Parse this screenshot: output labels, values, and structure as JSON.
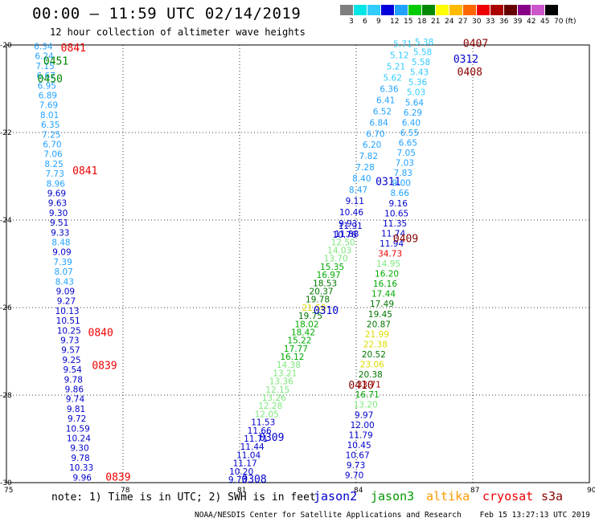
{
  "header": {
    "title": "00:00 – 11:59 UTC 02/14/2019",
    "subtitle": "12 hour collection of altimeter wave heights"
  },
  "colorbar": {
    "labels": [
      "3",
      "6",
      "9",
      "12",
      "15",
      "18",
      "21",
      "24",
      "27",
      "30",
      "33",
      "36",
      "39",
      "42",
      "45",
      "70",
      "(ft)"
    ],
    "colors": [
      "#7f7f7f",
      "#00e5e5",
      "#33ccff",
      "#0000dd",
      "#22a2ff",
      "#00cc00",
      "#008800",
      "#ffff00",
      "#ffbb00",
      "#ff6600",
      "#ee0000",
      "#aa0000",
      "#660000",
      "#880088",
      "#cc55cc",
      "#000000"
    ]
  },
  "map": {
    "lon_ticks": [
      "75",
      "78",
      "81",
      "84",
      "87",
      "90"
    ],
    "lat_ticks": [
      "-20",
      "-22",
      "-24",
      "-26",
      "-28",
      "-30"
    ]
  },
  "tracks": {
    "track_a": {
      "lat_start": -20.1,
      "lat_end": -29.95,
      "lon_start": 75.95,
      "lon_end": 76.95,
      "values": [
        "6.34",
        "6.24",
        "7.15",
        "6.67",
        "6.95",
        "6.89",
        "7.69",
        "8.01",
        "6.35",
        "7.25",
        "6.70",
        "7.06",
        "8.25",
        "7.73",
        "8.96",
        "9.69",
        "9.63",
        "9.30",
        "9.51",
        "9.33",
        "8.48",
        "9.09",
        "7.39",
        "8.07",
        "8.43",
        "9.09",
        "9.27",
        "10.13",
        "10.51",
        "10.25",
        "9.73",
        "9.57",
        "9.25",
        "9.54",
        "9.78",
        "9.86",
        "9.74",
        "9.81",
        "9.72",
        "10.59",
        "10.24",
        "9.30",
        "9.78",
        "10.33",
        "9.96"
      ],
      "colors": [
        "#22a2ff",
        "#22a2ff",
        "#22a2ff",
        "#22a2ff",
        "#22a2ff",
        "#22a2ff",
        "#22a2ff",
        "#22a2ff",
        "#22a2ff",
        "#22a2ff",
        "#22a2ff",
        "#22a2ff",
        "#22a2ff",
        "#22a2ff",
        "#22a2ff",
        "#0000cc",
        "#0000cc",
        "#0000cc",
        "#0000cc",
        "#0000cc",
        "#22a2ff",
        "#0000cc",
        "#22a2ff",
        "#22a2ff",
        "#22a2ff",
        "#0000cc",
        "#0000cc",
        "#0000cc",
        "#0000cc",
        "#0000cc",
        "#0000cc",
        "#0000cc",
        "#0000cc",
        "#0000cc",
        "#0000cc",
        "#0000cc",
        "#0000cc",
        "#0000cc",
        "#0000cc",
        "#0000cc",
        "#0000cc",
        "#0000cc",
        "#0000cc",
        "#0000cc",
        "#0000cc"
      ]
    },
    "track_b": {
      "lat_start": -24.2,
      "lat_end": -30.0,
      "lon_start": 83.85,
      "lon_end": 80.95,
      "values": [
        "11.91",
        "11.88",
        "12.50",
        "14.03",
        "13.70",
        "15.35",
        "16.97",
        "18.53",
        "20.37",
        "19.78",
        "21.58",
        "19.75",
        "18.02",
        "18.42",
        "15.22",
        "17.77",
        "16.12",
        "14.38",
        "13.21",
        "13.36",
        "12.15",
        "13.26",
        "12.28",
        "12.05",
        "11.53",
        "11.66",
        "11.71",
        "11.44",
        "11.04",
        "11.17",
        "10.20",
        "9.73"
      ],
      "colors": [
        "#0000cc",
        "#0000cc",
        "#7ee87e",
        "#7ee87e",
        "#7ee87e",
        "#00aa00",
        "#00aa00",
        "#007700",
        "#007700",
        "#007700",
        "#dddd00",
        "#007700",
        "#00aa00",
        "#00aa00",
        "#00aa00",
        "#00aa00",
        "#00aa00",
        "#7ee87e",
        "#7ee87e",
        "#7ee87e",
        "#7ee87e",
        "#7ee87e",
        "#7ee87e",
        "#7ee87e",
        "#0000cc",
        "#0000cc",
        "#0000cc",
        "#0000cc",
        "#0000cc",
        "#0000cc",
        "#0000cc",
        "#0000cc"
      ]
    },
    "track_c": {
      "lat_start": -20.0,
      "lat_end": -29.9,
      "lon_start": 85.75,
      "lon_end": 83.95,
      "values": [
        "5.38",
        "5.58",
        "5.58",
        "5.43",
        "5.36",
        "5.03",
        "5.64",
        "6.29",
        "6.40",
        "6.55",
        "6.65",
        "7.05",
        "7.03",
        "7.83",
        "9.00",
        "8.66",
        "9.16",
        "10.65",
        "11.35",
        "11.74",
        "11.94",
        "34.73",
        "14.95",
        "16.20",
        "16.16",
        "17.44",
        "17.49",
        "19.45",
        "20.87",
        "21.99",
        "22.38",
        "20.52",
        "23.06",
        "20.38",
        "33.71",
        "16.71",
        "13.20",
        "9.97",
        "12.00",
        "11.79",
        "10.45",
        "10.67",
        "9.73",
        "9.70"
      ],
      "colors": [
        "#33ccff",
        "#33ccff",
        "#33ccff",
        "#33ccff",
        "#33ccff",
        "#33ccff",
        "#22a2ff",
        "#22a2ff",
        "#22a2ff",
        "#22a2ff",
        "#22a2ff",
        "#22a2ff",
        "#22a2ff",
        "#22a2ff",
        "#22a2ff",
        "#22a2ff",
        "#0000cc",
        "#0000cc",
        "#0000cc",
        "#0000cc",
        "#0000cc",
        "#ee0000",
        "#7ee87e",
        "#00aa00",
        "#00aa00",
        "#00aa00",
        "#007700",
        "#007700",
        "#007700",
        "#dddd00",
        "#dddd00",
        "#007700",
        "#dddd00",
        "#007700",
        "#aa0000",
        "#00aa00",
        "#7ee87e",
        "#0000cc",
        "#0000cc",
        "#0000cc",
        "#0000cc",
        "#0000cc",
        "#0000cc",
        "#0000cc"
      ]
    },
    "track_d": {
      "lat_start": -20.05,
      "lat_end": -24.4,
      "lon_start": 85.2,
      "lon_end": 83.7,
      "values": [
        "5.71",
        "5.12",
        "5.21",
        "5.62",
        "6.36",
        "6.41",
        "6.52",
        "6.84",
        "6.70",
        "6.20",
        "7.82",
        "7.28",
        "8.40",
        "8.47",
        "9.11",
        "10.46",
        "9.93",
        "10.76"
      ],
      "colors": [
        "#33ccff",
        "#33ccff",
        "#33ccff",
        "#33ccff",
        "#22a2ff",
        "#22a2ff",
        "#22a2ff",
        "#22a2ff",
        "#22a2ff",
        "#22a2ff",
        "#22a2ff",
        "#22a2ff",
        "#22a2ff",
        "#22a2ff",
        "#0000cc",
        "#0000cc",
        "#0000cc",
        "#0000cc"
      ]
    }
  },
  "time_labels": [
    {
      "text": "0841",
      "lon": 76.4,
      "lat": -20.15,
      "color": "#ee0000"
    },
    {
      "text": "0451",
      "lon": 75.95,
      "lat": -20.45,
      "color": "#008800"
    },
    {
      "text": "0450",
      "lon": 75.8,
      "lat": -20.85,
      "color": "#008800"
    },
    {
      "text": "0841",
      "lon": 76.7,
      "lat": -22.95,
      "color": "#ee0000"
    },
    {
      "text": "0840",
      "lon": 77.1,
      "lat": -26.65,
      "color": "#ee0000"
    },
    {
      "text": "0839",
      "lon": 77.2,
      "lat": -27.4,
      "color": "#ee0000"
    },
    {
      "text": "0839",
      "lon": 77.55,
      "lat": -29.95,
      "color": "#ee0000"
    },
    {
      "text": "0407",
      "lon": 86.75,
      "lat": -20.05,
      "color": "#880000"
    },
    {
      "text": "0312",
      "lon": 86.5,
      "lat": -20.4,
      "color": "#0000cc"
    },
    {
      "text": "0408",
      "lon": 86.6,
      "lat": -20.7,
      "color": "#880000"
    },
    {
      "text": "0311",
      "lon": 84.5,
      "lat": -23.2,
      "color": "#0000cc"
    },
    {
      "text": "0409",
      "lon": 84.95,
      "lat": -24.5,
      "color": "#880000"
    },
    {
      "text": "0310",
      "lon": 82.9,
      "lat": -26.15,
      "color": "#0000cc"
    },
    {
      "text": "0410",
      "lon": 83.8,
      "lat": -27.85,
      "color": "#880000"
    },
    {
      "text": "0309",
      "lon": 81.5,
      "lat": -29.05,
      "color": "#0000cc"
    },
    {
      "text": "0308",
      "lon": 81.05,
      "lat": -30.0,
      "color": "#0000cc"
    }
  ],
  "footer": {
    "note": "note: 1) Time is in UTC; 2) SWH is in feet",
    "missions": [
      {
        "name": "jason2",
        "color": "#0000cc"
      },
      {
        "name": "jason3",
        "color": "#009900"
      },
      {
        "name": "altika",
        "color": "#ff9900"
      },
      {
        "name": "cryosat",
        "color": "#ee0000"
      },
      {
        "name": "s3a",
        "color": "#880000"
      }
    ],
    "credit": "NOAA/NESDIS Center for Satellite Applications and Research",
    "timestamp": "Feb 15 13:27:13 UTC 2019"
  }
}
